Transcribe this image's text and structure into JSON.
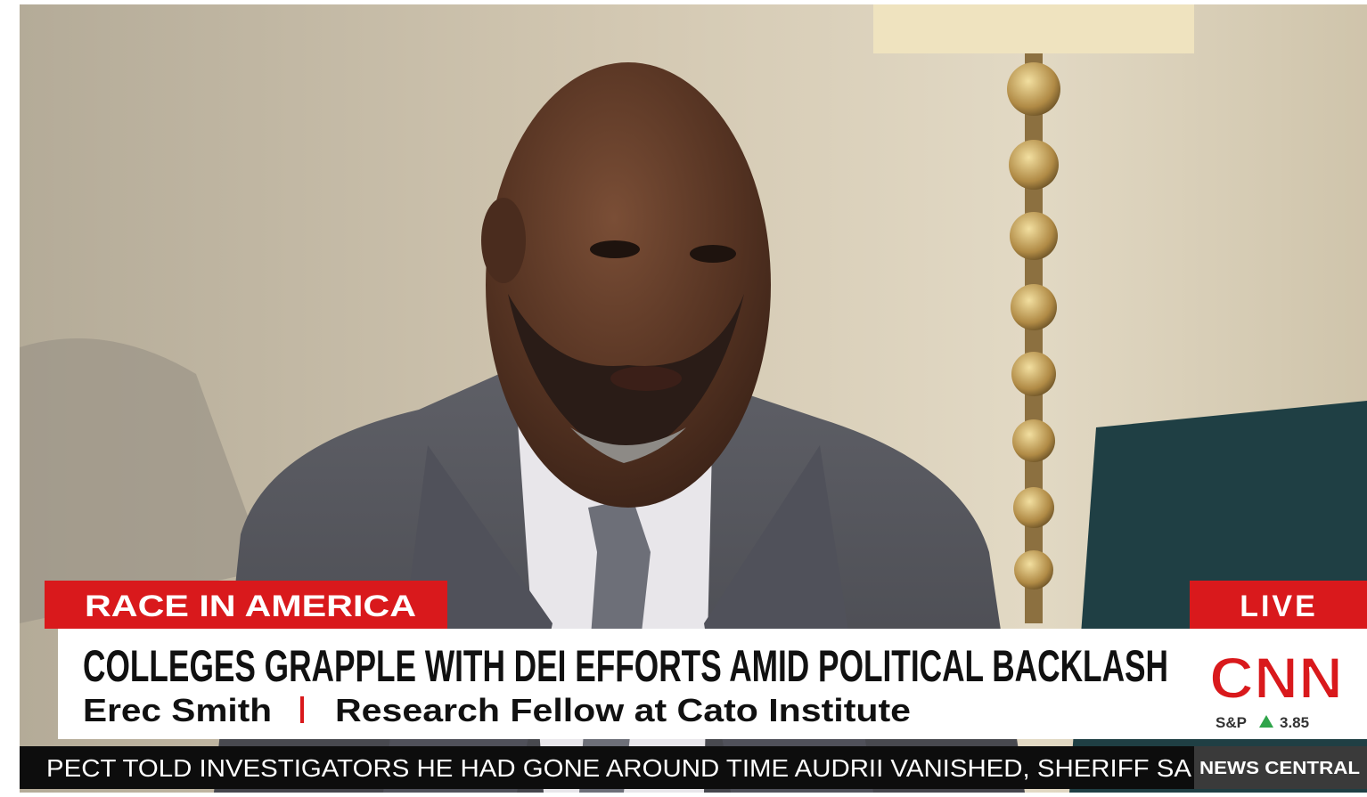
{
  "lower_third": {
    "section_tag": "RACE IN AMERICA",
    "live_tag": "LIVE",
    "headline": "COLLEGES GRAPPLE WITH DEI EFFORTS AMID POLITICAL BACKLASH",
    "guest_name": "Erec Smith",
    "guest_title": "Research Fellow at Cato Institute",
    "network_logo": "CNN",
    "market": {
      "index": "S&P",
      "change": "3.85"
    }
  },
  "ticker": {
    "text": "PECT TOLD INVESTIGATORS HE HAD GONE AROUND TIME AUDRII VANISHED, SHERIFF SA",
    "label": "NEWS CENTRAL"
  }
}
